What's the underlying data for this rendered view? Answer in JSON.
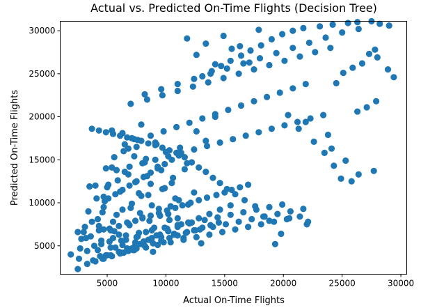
{
  "chart_data": {
    "type": "scatter",
    "title": "Actual vs. Predicted On-Time Flights (Decision Tree)",
    "xlabel": "Actual On-Time Flights",
    "ylabel": "Predicted On-Time Flights",
    "xlim": [
      1000,
      30500
    ],
    "ylim": [
      1700,
      31100
    ],
    "xticks": [
      5000,
      10000,
      15000,
      20000,
      25000,
      30000
    ],
    "yticks": [
      5000,
      10000,
      15000,
      20000,
      25000,
      30000
    ],
    "grid": false,
    "marker_color": "#1f77b4",
    "x": [
      1900,
      2500,
      2600,
      2800,
      3100,
      3300,
      3600,
      3800,
      4200,
      4500,
      4700,
      4900,
      5200,
      5500,
      5700,
      6000,
      6300,
      6600,
      6900,
      7200,
      7500,
      7800,
      8100,
      8300,
      8600,
      8900,
      9200,
      9500,
      9800,
      10100,
      10400,
      10700,
      11000,
      11500,
      12000,
      12500,
      13000,
      3000,
      3400,
      3900,
      4300,
      4800,
      5300,
      5800,
      6200,
      6700,
      7100,
      7600,
      8000,
      8500,
      9000,
      9400,
      9900,
      10300,
      10800,
      11300,
      11900,
      12400,
      2700,
      3200,
      3700,
      4100,
      4600,
      5100,
      5600,
      6100,
      6500,
      7000,
      7400,
      7900,
      8400,
      8800,
      9300,
      9700,
      10200,
      10600,
      11100,
      11600,
      4400,
      4700,
      5000,
      5400,
      5900,
      6400,
      6800,
      7300,
      7700,
      8200,
      8700,
      9100,
      9600,
      10000,
      10500,
      11200,
      11800,
      12600,
      13400,
      14200,
      2500,
      3500,
      4000,
      4700,
      5600,
      7500,
      8300,
      9200,
      6800,
      6300,
      7100,
      7900,
      4900,
      5400,
      4300,
      5200,
      6000,
      6800,
      7400,
      8000,
      8700,
      9400,
      10100,
      10800,
      11400,
      12100,
      12800,
      13500,
      14300,
      15000,
      15600,
      16300,
      17000,
      4500,
      5500,
      6600,
      7700,
      8800,
      9900,
      11000,
      12200,
      13300,
      14400,
      15500,
      16600,
      17700,
      18800,
      19900,
      4200,
      5300,
      6300,
      7400,
      8500,
      9600,
      10700,
      11800,
      12900,
      14000,
      15100,
      16200,
      17300,
      18400,
      19500,
      20600,
      21700,
      5000,
      6200,
      7300,
      8300,
      9300,
      10400,
      11500,
      12600,
      13700,
      14800,
      15900,
      17000,
      18100,
      19200,
      20300,
      21400,
      5800,
      6900,
      8000,
      9100,
      10200,
      11300,
      12400,
      13500,
      14600,
      15700,
      16800,
      17900,
      19000,
      20100,
      21200,
      22300,
      23400,
      6500,
      7600,
      8700,
      9800,
      10900,
      12000,
      13100,
      14200,
      15300,
      16400,
      17500,
      18600,
      19700,
      20800,
      21900,
      7000,
      8400,
      9700,
      11000,
      12300,
      13600,
      14900,
      16200,
      17500,
      18800,
      20100,
      21400,
      22700,
      24000,
      8200,
      9600,
      11000,
      12400,
      13800,
      15200,
      16600,
      18000,
      19400,
      20800,
      22200,
      23600,
      25000,
      26400,
      27800,
      11800,
      12600,
      13400,
      14200,
      14900,
      15600,
      16300,
      17100,
      17900,
      13100,
      13900,
      14700,
      15500,
      16400,
      17200,
      18100,
      19000,
      19900,
      20800,
      21700,
      23100,
      24200,
      25500,
      26300,
      27500,
      28200,
      29000,
      24500,
      25100,
      25900,
      26700,
      27300,
      28000,
      28900,
      29400,
      26300,
      27100,
      27900,
      24300,
      25300,
      24900,
      25800,
      26400,
      27700,
      23500,
      24100,
      22600,
      23800,
      21300,
      21900,
      20400,
      22000,
      22100,
      20500,
      19800,
      19300,
      18800,
      18300,
      17600,
      16700,
      15900,
      15200,
      14600,
      14000,
      13400,
      12800,
      12200,
      11600,
      10900,
      10300,
      9700,
      9100,
      8500,
      7900,
      7300,
      6700,
      6100,
      5500,
      4900,
      4300,
      3700,
      6400,
      7100,
      7800,
      8600,
      9400,
      10200,
      11000,
      11900,
      12800,
      13700,
      14600,
      15500,
      5100,
      5700,
      6300,
      6900,
      7500,
      8100,
      8700,
      9300,
      9900,
      10500,
      11100,
      4600,
      5300,
      6000,
      6700,
      7400,
      8100,
      8800,
      9500,
      10200,
      3300,
      4000,
      4700,
      5400,
      6100,
      6800,
      7500,
      8200,
      8900,
      9600,
      10300,
      11000,
      11700,
      12400,
      13100,
      13800,
      14500
    ],
    "y": [
      4000,
      2300,
      3500,
      5800,
      7200,
      4400,
      6100,
      3300,
      8100,
      5200,
      6900,
      3900,
      5500,
      7800,
      4800,
      6300,
      9200,
      5700,
      7400,
      4500,
      6000,
      8800,
      5100,
      6600,
      7900,
      4300,
      6200,
      8500,
      5400,
      7000,
      9600,
      6400,
      8200,
      5900,
      7600,
      6800,
      5300,
      6600,
      9000,
      5000,
      7300,
      10200,
      6800,
      8600,
      5600,
      7700,
      9900,
      6100,
      8300,
      10900,
      7100,
      9300,
      11700,
      8000,
      10500,
      7500,
      9800,
      11200,
      4700,
      5900,
      7800,
      10500,
      8900,
      12100,
      6700,
      11300,
      13600,
      9400,
      12400,
      10800,
      13100,
      9700,
      14200,
      11600,
      8700,
      12900,
      10300,
      13900,
      3800,
      9500,
      11800,
      14100,
      12600,
      16000,
      13300,
      15400,
      11100,
      14700,
      12200,
      17000,
      13800,
      15900,
      12300,
      16400,
      14600,
      18300,
      17200,
      20000,
      6600,
      11900,
      12000,
      10700,
      15300,
      16500,
      15100,
      16800,
      16300,
      18100,
      17500,
      19100,
      14000,
      18400,
      6800,
      7000,
      7300,
      7600,
      7900,
      8200,
      8500,
      8800,
      9100,
      9400,
      9700,
      10000,
      10300,
      10600,
      10900,
      11200,
      11500,
      11800,
      12100,
      5600,
      5900,
      6200,
      6500,
      6800,
      7100,
      7400,
      7700,
      8000,
      8300,
      8600,
      8900,
      9200,
      9500,
      9800,
      4500,
      4800,
      5100,
      5400,
      5700,
      6000,
      6300,
      6600,
      6900,
      7200,
      7500,
      7800,
      8100,
      8400,
      8700,
      9000,
      9300,
      3900,
      4200,
      4500,
      4800,
      5100,
      5400,
      5700,
      6000,
      6300,
      6600,
      6900,
      7200,
      7500,
      7800,
      8100,
      8400,
      13800,
      14200,
      14600,
      15000,
      15400,
      15800,
      16200,
      16600,
      17000,
      17400,
      17800,
      18200,
      18600,
      19000,
      19400,
      19800,
      20200,
      16800,
      17300,
      17800,
      18300,
      18800,
      19300,
      19800,
      20300,
      20800,
      21300,
      21800,
      22300,
      22800,
      23300,
      23800,
      21500,
      22000,
      22500,
      23000,
      23500,
      24000,
      24500,
      25000,
      25500,
      26000,
      26500,
      27000,
      27500,
      28000,
      22600,
      23200,
      23800,
      24400,
      25000,
      25600,
      26200,
      26800,
      27400,
      28000,
      28600,
      29200,
      29800,
      30200,
      27800,
      29100,
      27200,
      28500,
      26100,
      29400,
      27900,
      28200,
      26300,
      30100,
      24700,
      25300,
      25900,
      26500,
      27100,
      27700,
      28300,
      29000,
      29600,
      30000,
      30300,
      30500,
      30700,
      30900,
      31000,
      31100,
      30800,
      30600,
      23900,
      25100,
      25700,
      26200,
      27300,
      26900,
      25500,
      24600,
      20600,
      21100,
      21800,
      14300,
      14900,
      12800,
      12500,
      13300,
      13700,
      15800,
      16300,
      17100,
      17900,
      18600,
      19400,
      20200,
      7500,
      7800,
      8200,
      6400,
      5200,
      7900,
      8400,
      9600,
      10300,
      11000,
      11600,
      12300,
      12900,
      13600,
      14100,
      14700,
      15300,
      15800,
      16100,
      16400,
      16700,
      16900,
      17200,
      17400,
      17600,
      17800,
      18000,
      18200,
      18400,
      18600,
      4200,
      4700,
      5200,
      5700,
      6200,
      6700,
      7200,
      7700,
      8200,
      8700,
      9200,
      9700,
      10500,
      11000,
      11500,
      12000,
      12500,
      13000,
      13500,
      14000,
      14500,
      15000,
      15500,
      3500,
      3900,
      4300,
      4700,
      5100,
      5500,
      5900,
      6300,
      6700,
      2900,
      3200,
      3500,
      3800,
      4100,
      4400,
      4700,
      5000,
      5300,
      5600,
      5900,
      6200,
      6500,
      6800,
      7100,
      7400,
      7700
    ]
  }
}
